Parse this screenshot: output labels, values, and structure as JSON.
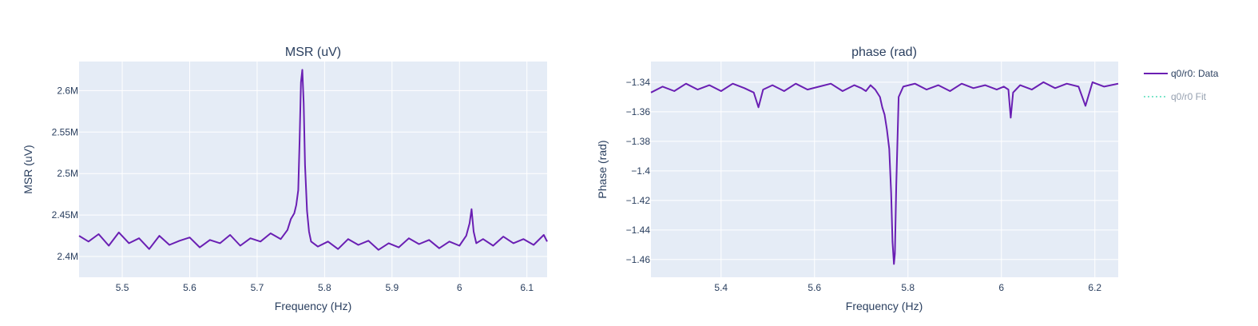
{
  "colors": {
    "plot_bg": "#e5ecf6",
    "grid": "#ffffff",
    "text": "#2a3f5f",
    "data_line": "#6a1fb3",
    "fit_line": "#00cc96"
  },
  "legend": {
    "position": "top-right",
    "items": [
      {
        "label": "q0/r0: Data",
        "style": "solid",
        "color": "#6a1fb3",
        "faded": false
      },
      {
        "label": "q0/r0 Fit",
        "style": "dotted",
        "color": "#00cc96",
        "faded": true
      }
    ]
  },
  "chart_data": [
    {
      "type": "line",
      "title": "MSR (uV)",
      "xlabel": "Frequency (Hz)",
      "ylabel": "MSR (uV)",
      "xlim": [
        5.436,
        6.13
      ],
      "ylim": [
        2375000,
        2635000
      ],
      "grid": true,
      "x_ticks": [
        {
          "value": 5.5,
          "label": "5.5"
        },
        {
          "value": 5.6,
          "label": "5.6"
        },
        {
          "value": 5.7,
          "label": "5.7"
        },
        {
          "value": 5.8,
          "label": "5.8"
        },
        {
          "value": 5.9,
          "label": "5.9"
        },
        {
          "value": 6.0,
          "label": "6"
        },
        {
          "value": 6.1,
          "label": "6.1"
        }
      ],
      "y_ticks": [
        {
          "value": 2400000,
          "label": "2.4M"
        },
        {
          "value": 2450000,
          "label": "2.45M"
        },
        {
          "value": 2500000,
          "label": "2.5M"
        },
        {
          "value": 2550000,
          "label": "2.55M"
        },
        {
          "value": 2600000,
          "label": "2.6M"
        }
      ],
      "series": [
        {
          "name": "q0/r0: Data",
          "x": [
            5.436,
            5.45,
            5.465,
            5.48,
            5.495,
            5.51,
            5.525,
            5.54,
            5.555,
            5.57,
            5.585,
            5.6,
            5.615,
            5.63,
            5.645,
            5.66,
            5.675,
            5.69,
            5.705,
            5.72,
            5.735,
            5.745,
            5.75,
            5.755,
            5.758,
            5.761,
            5.763,
            5.765,
            5.767,
            5.769,
            5.771,
            5.774,
            5.777,
            5.78,
            5.79,
            5.805,
            5.82,
            5.835,
            5.85,
            5.865,
            5.88,
            5.895,
            5.91,
            5.925,
            5.94,
            5.955,
            5.97,
            5.985,
            6.0,
            6.01,
            6.015,
            6.018,
            6.021,
            6.025,
            6.035,
            6.05,
            6.065,
            6.08,
            6.095,
            6.11,
            6.125,
            6.13
          ],
          "y": [
            2425000,
            2418000,
            2427000,
            2413000,
            2429000,
            2416000,
            2422000,
            2409000,
            2425000,
            2414000,
            2419000,
            2423000,
            2411000,
            2420000,
            2416000,
            2426000,
            2413000,
            2422000,
            2418000,
            2428000,
            2421000,
            2432000,
            2445000,
            2452000,
            2462000,
            2480000,
            2540000,
            2610000,
            2625000,
            2585000,
            2510000,
            2455000,
            2430000,
            2418000,
            2412000,
            2418000,
            2409000,
            2421000,
            2414000,
            2419000,
            2408000,
            2416000,
            2411000,
            2422000,
            2415000,
            2420000,
            2410000,
            2418000,
            2413000,
            2425000,
            2440000,
            2457000,
            2430000,
            2416000,
            2421000,
            2413000,
            2424000,
            2416000,
            2421000,
            2414000,
            2426000,
            2418000
          ]
        }
      ]
    },
    {
      "type": "line",
      "title": "phase (rad)",
      "xlabel": "Frequency (Hz)",
      "ylabel": "Phase (rad)",
      "xlim": [
        5.25,
        6.25
      ],
      "ylim": [
        -1.472,
        -1.326
      ],
      "grid": true,
      "x_ticks": [
        {
          "value": 5.4,
          "label": "5.4"
        },
        {
          "value": 5.6,
          "label": "5.6"
        },
        {
          "value": 5.8,
          "label": "5.8"
        },
        {
          "value": 6.0,
          "label": "6"
        },
        {
          "value": 6.2,
          "label": "6.2"
        }
      ],
      "y_ticks": [
        {
          "value": -1.34,
          "label": "−1.34"
        },
        {
          "value": -1.36,
          "label": "−1.36"
        },
        {
          "value": -1.38,
          "label": "−1.38"
        },
        {
          "value": -1.4,
          "label": "−1.4"
        },
        {
          "value": -1.42,
          "label": "−1.42"
        },
        {
          "value": -1.44,
          "label": "−1.44"
        },
        {
          "value": -1.46,
          "label": "−1.46"
        }
      ],
      "series": [
        {
          "name": "q0/r0: Data",
          "x": [
            5.25,
            5.275,
            5.3,
            5.325,
            5.35,
            5.375,
            5.4,
            5.425,
            5.45,
            5.47,
            5.48,
            5.49,
            5.51,
            5.535,
            5.56,
            5.585,
            5.61,
            5.635,
            5.66,
            5.685,
            5.7,
            5.71,
            5.72,
            5.73,
            5.74,
            5.745,
            5.75,
            5.755,
            5.76,
            5.764,
            5.767,
            5.77,
            5.772,
            5.775,
            5.78,
            5.79,
            5.815,
            5.84,
            5.865,
            5.89,
            5.915,
            5.94,
            5.965,
            5.99,
            6.005,
            6.015,
            6.02,
            6.025,
            6.04,
            6.065,
            6.09,
            6.115,
            6.14,
            6.165,
            6.18,
            6.195,
            6.22,
            6.25
          ],
          "y": [
            -1.347,
            -1.343,
            -1.346,
            -1.341,
            -1.345,
            -1.342,
            -1.346,
            -1.341,
            -1.344,
            -1.347,
            -1.357,
            -1.345,
            -1.342,
            -1.346,
            -1.341,
            -1.345,
            -1.343,
            -1.341,
            -1.346,
            -1.342,
            -1.344,
            -1.346,
            -1.342,
            -1.345,
            -1.35,
            -1.357,
            -1.362,
            -1.372,
            -1.385,
            -1.415,
            -1.448,
            -1.463,
            -1.456,
            -1.41,
            -1.35,
            -1.343,
            -1.341,
            -1.345,
            -1.342,
            -1.346,
            -1.341,
            -1.344,
            -1.342,
            -1.345,
            -1.343,
            -1.345,
            -1.364,
            -1.347,
            -1.342,
            -1.345,
            -1.34,
            -1.344,
            -1.341,
            -1.343,
            -1.356,
            -1.34,
            -1.343,
            -1.341
          ]
        }
      ]
    }
  ]
}
